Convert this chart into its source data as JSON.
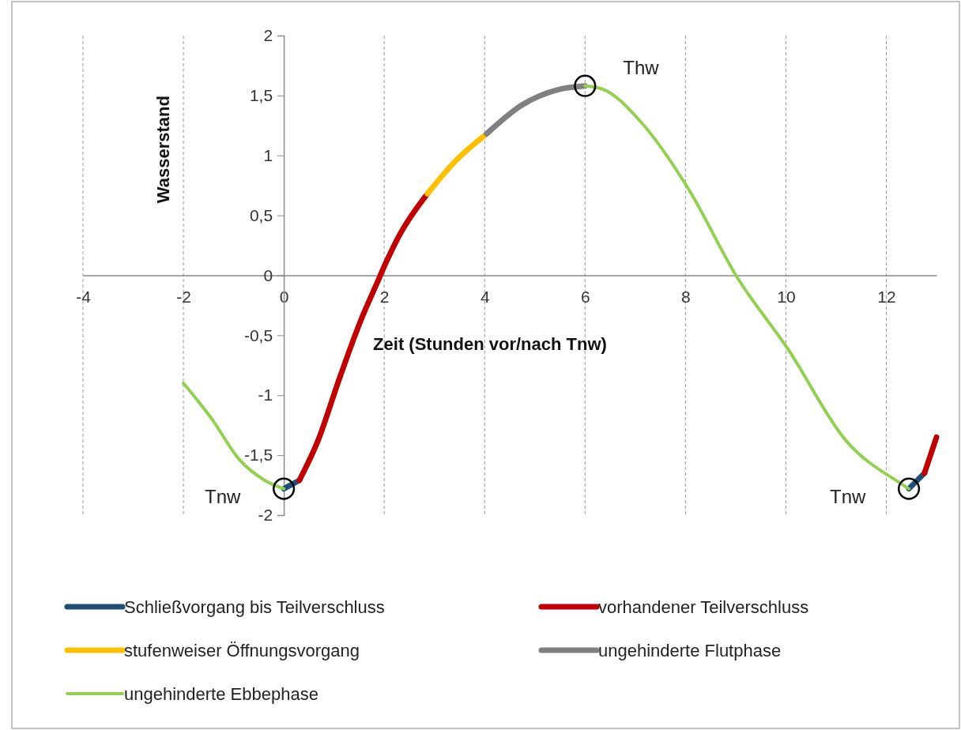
{
  "chart_data": {
    "type": "line",
    "xlabel": "Zeit (Stunden vor/nach Tnw)",
    "ylabel": "Wasserstand",
    "xlim": [
      -4,
      13
    ],
    "xticks": [
      -4,
      -2,
      0,
      2,
      4,
      6,
      8,
      10,
      12
    ],
    "ylim": [
      -2,
      2
    ],
    "yticks": [
      {
        "value": -2,
        "label": "-2"
      },
      {
        "value": -1.5,
        "label": "-1,5"
      },
      {
        "value": -1,
        "label": "-1"
      },
      {
        "value": -0.5,
        "label": "-0,5"
      },
      {
        "value": 0,
        "label": "0"
      },
      {
        "value": 0.5,
        "label": "0,5"
      },
      {
        "value": 1,
        "label": "1"
      },
      {
        "value": 1.5,
        "label": "1,5"
      },
      {
        "value": 2,
        "label": "2"
      }
    ],
    "grid": "x",
    "legend": "bottom",
    "line_style": "solid",
    "marker": "none",
    "series": [
      {
        "name": "Schließvorgang bis Teilverschluss",
        "color": "#1f4e79",
        "x": [
          0,
          0.31,
          null,
          12.45,
          12.76
        ],
        "values": [
          -1.78,
          -1.71,
          null,
          -1.78,
          -1.65
        ]
      },
      {
        "name": "vorhandener Teilverschluss",
        "color": "#c00000",
        "x": [
          0.31,
          0.68,
          1.1,
          1.52,
          1.84,
          2.05,
          2.31,
          2.86,
          null,
          12.76,
          13
        ],
        "values": [
          -1.71,
          -1.38,
          -0.87,
          -0.39,
          -0.08,
          0.12,
          0.34,
          0.68,
          null,
          -1.65,
          -1.35
        ]
      },
      {
        "name": "stufenweiser Öffnungsvorgang",
        "color": "#ffc000",
        "x": [
          2.86,
          3.41,
          4.04
        ],
        "values": [
          0.68,
          0.95,
          1.18
        ]
      },
      {
        "name": "ungehinderte Flutphase",
        "color": "#808080",
        "x": [
          4.04,
          4.74,
          5.47,
          6.0
        ],
        "values": [
          1.18,
          1.42,
          1.55,
          1.58
        ]
      },
      {
        "name": "ungehinderte Ebbephase",
        "color": "#92d050",
        "x": [
          -2,
          -1.43,
          -0.9,
          -0.38,
          0,
          null,
          6.0,
          6.37,
          7.09,
          8.06,
          9.02,
          10.05,
          11.18,
          12.34,
          12.45
        ],
        "values": [
          -0.9,
          -1.2,
          -1.53,
          -1.71,
          -1.78,
          null,
          1.58,
          1.55,
          1.29,
          0.72,
          -0.01,
          -0.62,
          -1.37,
          -1.75,
          -1.78
        ]
      },
      {
        "type": "scatter",
        "marker": "circle",
        "color": "#000000",
        "x": [
          0,
          6.0,
          12.45
        ],
        "values": [
          -1.78,
          1.58,
          -1.78
        ]
      }
    ],
    "annotations": [
      {
        "text": "Tnw",
        "x": 0,
        "y": -1.78
      },
      {
        "text": "Thw",
        "x": 6.0,
        "y": 1.58
      },
      {
        "text": "Tnw",
        "x": 12.45,
        "y": -1.78
      }
    ]
  }
}
